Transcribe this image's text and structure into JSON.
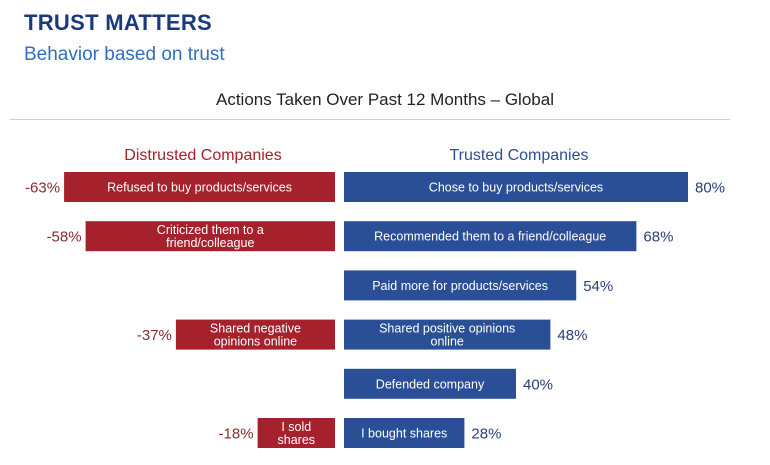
{
  "header": {
    "title": "TRUST MATTERS",
    "subtitle": "Behavior based on trust"
  },
  "colors": {
    "distrusted": "#a5212b",
    "trusted": "#2b4f97",
    "value_distrusted": "#8c2a2a",
    "value_trusted": "#2a3f7a"
  },
  "chart_data": {
    "type": "bar",
    "orientation": "horizontal-diverging",
    "title": "Actions Taken Over Past 12 Months – Global",
    "series": [
      {
        "name": "Distrusted Companies",
        "items": [
          {
            "row": 0,
            "label": "Refused to buy products/services",
            "value": -63,
            "display": "-63%"
          },
          {
            "row": 1,
            "label": "Criticized them to a friend/colleague",
            "value": -58,
            "display": "-58%"
          },
          {
            "row": 3,
            "label": "Shared negative opinions online",
            "value": -37,
            "display": "-37%"
          },
          {
            "row": 5,
            "label": "I sold shares",
            "value": -18,
            "display": "-18%"
          }
        ]
      },
      {
        "name": "Trusted Companies",
        "items": [
          {
            "row": 0,
            "label": "Chose to buy products/services",
            "value": 80,
            "display": "80%"
          },
          {
            "row": 1,
            "label": "Recommended them to a friend/colleague",
            "value": 68,
            "display": "68%"
          },
          {
            "row": 2,
            "label": "Paid more for products/services",
            "value": 54,
            "display": "54%"
          },
          {
            "row": 3,
            "label": "Shared positive opinions online",
            "value": 48,
            "display": "48%"
          },
          {
            "row": 4,
            "label": "Defended company",
            "value": 40,
            "display": "40%"
          },
          {
            "row": 5,
            "label": "I bought shares",
            "value": 28,
            "display": "28%"
          }
        ]
      }
    ],
    "xlim": [
      -80,
      80
    ],
    "grid": false
  }
}
